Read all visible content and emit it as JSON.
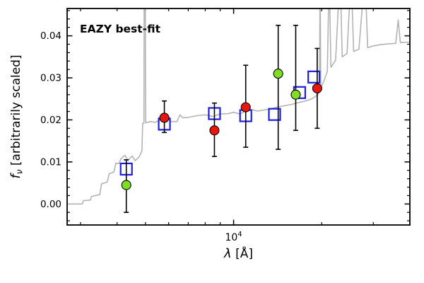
{
  "figure": {
    "background": "#ffffff",
    "axis_color": "#000000"
  },
  "chart_data": {
    "type": "line",
    "title": "",
    "xlabel": "λ [Å]",
    "ylabel": "f_ν [arbitrarily scaled]",
    "x_scale": "log",
    "y_scale": "linear",
    "xlim": [
      2700,
      40000
    ],
    "ylim": [
      -0.005,
      0.0465
    ],
    "grid": false,
    "legend": "none",
    "labels": {
      "y_symbol": "f",
      "y_sub": "ν",
      "y_rest": " [arbitrarily scaled]",
      "x_symbol": "λ",
      "x_rest": " [Å]"
    },
    "annotation": {
      "text": "EAZY best-fit",
      "color": "#ff0000"
    },
    "x_ticks": {
      "major": [
        {
          "value": 10000,
          "mantissa": "10",
          "exp": "4"
        }
      ],
      "minor": [
        3000,
        4000,
        5000,
        6000,
        7000,
        8000,
        9000,
        20000,
        30000,
        40000
      ]
    },
    "y_ticks": {
      "major": [
        {
          "value": 0.0,
          "label": "0.00"
        },
        {
          "value": 0.01,
          "label": "0.01"
        },
        {
          "value": 0.02,
          "label": "0.02"
        },
        {
          "value": 0.03,
          "label": "0.03"
        },
        {
          "value": 0.04,
          "label": "0.04"
        }
      ],
      "minor_step": 0.002
    },
    "series": [
      {
        "name": "model-spectrum",
        "style": "line",
        "color": "#b3b3b3",
        "points": [
          [
            2700,
            0.0
          ],
          [
            3040,
            0.0
          ],
          [
            3070,
            0.0008
          ],
          [
            3240,
            0.0009
          ],
          [
            3270,
            0.0018
          ],
          [
            3490,
            0.0022
          ],
          [
            3540,
            0.0048
          ],
          [
            3700,
            0.0052
          ],
          [
            3760,
            0.0072
          ],
          [
            3900,
            0.0076
          ],
          [
            3960,
            0.0097
          ],
          [
            4060,
            0.0096
          ],
          [
            4120,
            0.0107
          ],
          [
            4250,
            0.0116
          ],
          [
            4360,
            0.0104
          ],
          [
            4500,
            0.0114
          ],
          [
            4610,
            0.0103
          ],
          [
            4760,
            0.0112
          ],
          [
            4860,
            0.0126
          ],
          [
            4890,
            0.0192
          ],
          [
            4940,
            0.0192
          ],
          [
            4955,
            0.06
          ],
          [
            4985,
            0.06
          ],
          [
            5010,
            0.0193
          ],
          [
            5200,
            0.0196
          ],
          [
            5400,
            0.0194
          ],
          [
            5650,
            0.0201
          ],
          [
            5900,
            0.0206
          ],
          [
            6120,
            0.0196
          ],
          [
            6400,
            0.0196
          ],
          [
            6560,
            0.0212
          ],
          [
            6700,
            0.0205
          ],
          [
            7000,
            0.0206
          ],
          [
            7500,
            0.021
          ],
          [
            8000,
            0.0212
          ],
          [
            8500,
            0.0208
          ],
          [
            9000,
            0.0214
          ],
          [
            9600,
            0.0215
          ],
          [
            10000,
            0.0218
          ],
          [
            10500,
            0.0214
          ],
          [
            11000,
            0.0221
          ],
          [
            11600,
            0.0224
          ],
          [
            12100,
            0.0221
          ],
          [
            12800,
            0.0224
          ],
          [
            13500,
            0.0227
          ],
          [
            14200,
            0.0231
          ],
          [
            15000,
            0.0234
          ],
          [
            15800,
            0.0237
          ],
          [
            16600,
            0.0241
          ],
          [
            17400,
            0.0244
          ],
          [
            18200,
            0.0248
          ],
          [
            18900,
            0.0254
          ],
          [
            19400,
            0.0261
          ],
          [
            19650,
            0.0266
          ],
          [
            19750,
            0.055
          ],
          [
            19850,
            0.0275
          ],
          [
            20400,
            0.0295
          ],
          [
            20900,
            0.0315
          ],
          [
            21200,
            0.055
          ],
          [
            21500,
            0.0325
          ],
          [
            22300,
            0.0342
          ],
          [
            23100,
            0.055
          ],
          [
            23500,
            0.035
          ],
          [
            24400,
            0.0358
          ],
          [
            25200,
            0.055
          ],
          [
            25700,
            0.0363
          ],
          [
            26800,
            0.0368
          ],
          [
            28100,
            0.055
          ],
          [
            28700,
            0.0372
          ],
          [
            30000,
            0.0376
          ],
          [
            31800,
            0.0379
          ],
          [
            33800,
            0.0381
          ],
          [
            35800,
            0.0382
          ],
          [
            36500,
            0.0438
          ],
          [
            37100,
            0.0384
          ],
          [
            39900,
            0.0385
          ]
        ]
      },
      {
        "name": "model-photometry",
        "style": "open-square",
        "color": "#1f1fe0",
        "points": [
          [
            4300,
            0.0083
          ],
          [
            5800,
            0.019
          ],
          [
            8600,
            0.0215
          ],
          [
            11000,
            0.021
          ],
          [
            13800,
            0.0213
          ],
          [
            16800,
            0.0265
          ],
          [
            18800,
            0.0302
          ]
        ]
      },
      {
        "name": "observed-photometry-red",
        "style": "filled-circle",
        "color": "#e8160c",
        "points": [
          {
            "x": 5800,
            "y": 0.0205,
            "err_lo": 0.017,
            "err_hi": 0.0245
          },
          {
            "x": 8600,
            "y": 0.0175,
            "err_lo": 0.0113,
            "err_hi": 0.024
          },
          {
            "x": 11000,
            "y": 0.023,
            "err_lo": 0.0135,
            "err_hi": 0.033
          },
          {
            "x": 19300,
            "y": 0.0275,
            "err_lo": 0.018,
            "err_hi": 0.037
          }
        ]
      },
      {
        "name": "observed-photometry-green",
        "style": "filled-circle",
        "color": "#7fdd22",
        "points": [
          {
            "x": 4300,
            "y": 0.0045,
            "err_lo": -0.002,
            "err_hi": 0.0105
          },
          {
            "x": 14200,
            "y": 0.031,
            "err_lo": 0.013,
            "err_hi": 0.0425
          },
          {
            "x": 16300,
            "y": 0.026,
            "err_lo": 0.0175,
            "err_hi": 0.0425
          }
        ]
      }
    ]
  }
}
